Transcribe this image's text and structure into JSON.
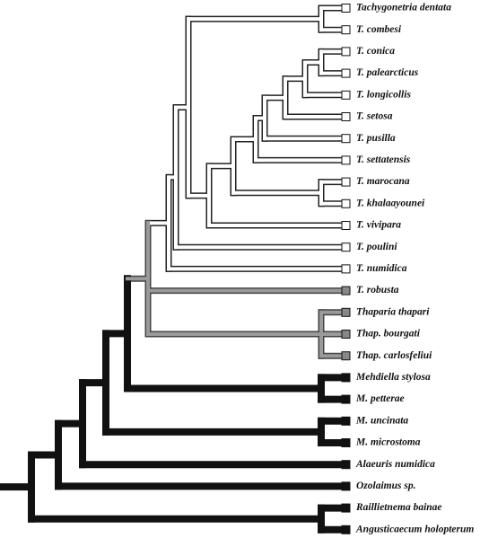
{
  "taxa": [
    "Tachygonetria dentata",
    "T. combesi",
    "T. conica",
    "T. palearcticus",
    "T. longicollis",
    "T. setosa",
    "T. pusilla",
    "T. settatensis",
    "T. marocana",
    "T. khalaayounei",
    "T. vivipara",
    "T. poulini",
    "T. numidica",
    "T. robusta",
    "Thaparia thapari",
    "Thap. bourgati",
    "Thap. carlosfeliui",
    "Mehdiella stylosa",
    "M. petterae",
    "M. uncinata",
    "M. microstoma",
    "Alaeuris numidica",
    "Ozolaimus sp.",
    "Raillietnema bainae",
    "Angusticaecum holopterum"
  ]
}
